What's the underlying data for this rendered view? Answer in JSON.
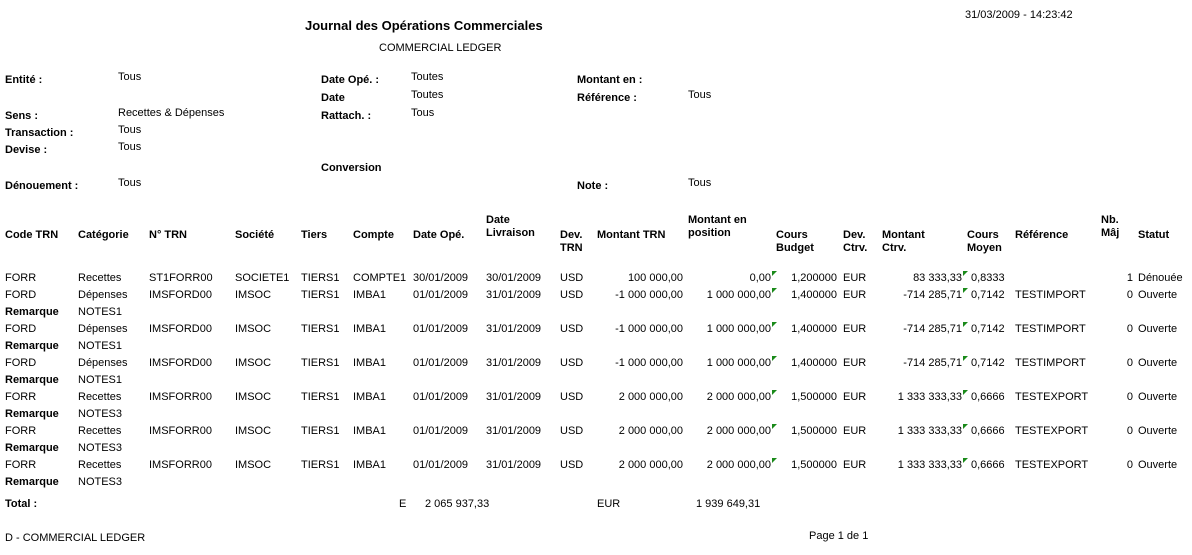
{
  "header": {
    "title": "Journal des Opérations Commerciales",
    "subtitle": "COMMERCIAL LEDGER",
    "datetime": "31/03/2009 - 14:23:42"
  },
  "filters": [
    {
      "label": "Entité :",
      "value": "Tous"
    },
    {
      "label": "Date Opé. :",
      "value": "Toutes"
    },
    {
      "label": "Montant en :"
    },
    {
      "label": "Date\nRattach. :",
      "value": "Toutes"
    },
    {
      "label": "Référence :",
      "value": "Tous"
    },
    {
      "label": "Sens :",
      "value": "Recettes & Dépenses"
    },
    {
      "value": "Tous"
    },
    {
      "label": "Transaction :",
      "value": "Tous"
    },
    {
      "label": "Devise :",
      "value": "Tous"
    },
    {
      "label": "Conversion"
    },
    {
      "label": "Dénouement :",
      "value": "Tous"
    },
    {
      "label": "Note :",
      "value": "Tous"
    }
  ],
  "table": {
    "columns": [
      "Code TRN",
      "Catégorie",
      "N° TRN",
      "Société",
      "Tiers",
      "Compte",
      "Date Opé.",
      "Date\nLivraison",
      "Dev.\nTRN",
      "Montant TRN",
      "Montant en\nposition",
      "Cours\nBudget",
      "Dev.\nCtrv.",
      "Montant\nCtrv.",
      "Cours\nMoyen",
      "Référence",
      "Nb.\nMâj",
      "Statut"
    ],
    "rows": [
      {
        "cells": [
          "FORR",
          "Recettes",
          "ST1FORR00",
          "SOCIETE1",
          "TIERS1",
          "COMPTE1",
          "30/01/2009",
          "30/01/2009",
          "USD",
          "100 000,00",
          "0,00",
          "1,200000",
          "EUR",
          "83 333,33",
          "0,8333",
          null,
          "1",
          "Dénouée"
        ]
      },
      {
        "cells": [
          "FORD",
          "Dépenses",
          "IMSFORD00",
          "IMSOC",
          "TIERS1",
          "IMBA1",
          "01/01/2009",
          "31/01/2009",
          "USD",
          "-1 000 000,00",
          "1 000 000,00",
          "1,400000",
          "EUR",
          "-714 285,71",
          "0,7142",
          "TESTIMPORT",
          "0",
          "Ouverte"
        ],
        "remark": {
          "label": "Remarque",
          "text": "NOTES1"
        }
      },
      {
        "cells": [
          "FORD",
          "Dépenses",
          "IMSFORD00",
          "IMSOC",
          "TIERS1",
          "IMBA1",
          "01/01/2009",
          "31/01/2009",
          "USD",
          "-1 000 000,00",
          "1 000 000,00",
          "1,400000",
          "EUR",
          "-714 285,71",
          "0,7142",
          "TESTIMPORT",
          "0",
          "Ouverte"
        ],
        "remark": {
          "label": "Remarque",
          "text": "NOTES1"
        }
      },
      {
        "cells": [
          "FORD",
          "Dépenses",
          "IMSFORD00",
          "IMSOC",
          "TIERS1",
          "IMBA1",
          "01/01/2009",
          "31/01/2009",
          "USD",
          "-1 000 000,00",
          "1 000 000,00",
          "1,400000",
          "EUR",
          "-714 285,71",
          "0,7142",
          "TESTIMPORT",
          "0",
          "Ouverte"
        ],
        "remark": {
          "label": "Remarque",
          "text": "NOTES1"
        }
      },
      {
        "cells": [
          "FORR",
          "Recettes",
          "IMSFORR00",
          "IMSOC",
          "TIERS1",
          "IMBA1",
          "01/01/2009",
          "31/01/2009",
          "USD",
          "2 000 000,00",
          "2 000 000,00",
          "1,500000",
          "EUR",
          "1 333 333,33",
          "0,6666",
          "TESTEXPORT",
          "0",
          "Ouverte"
        ],
        "remark": {
          "label": "Remarque",
          "text": "NOTES3"
        }
      },
      {
        "cells": [
          "FORR",
          "Recettes",
          "IMSFORR00",
          "IMSOC",
          "TIERS1",
          "IMBA1",
          "01/01/2009",
          "31/01/2009",
          "USD",
          "2 000 000,00",
          "2 000 000,00",
          "1,500000",
          "EUR",
          "1 333 333,33",
          "0,6666",
          "TESTEXPORT",
          "0",
          "Ouverte"
        ],
        "remark": {
          "label": "Remarque",
          "text": "NOTES3"
        }
      },
      {
        "cells": [
          "FORR",
          "Recettes",
          "IMSFORR00",
          "IMSOC",
          "TIERS1",
          "IMBA1",
          "01/01/2009",
          "31/01/2009",
          "USD",
          "2 000 000,00",
          "2 000 000,00",
          "1,500000",
          "EUR",
          "1 333 333,33",
          "0,6666",
          "TESTEXPORT",
          "0",
          "Ouverte"
        ],
        "remark": {
          "label": "Remarque",
          "text": "NOTES3"
        }
      }
    ],
    "total": {
      "label": "Total :",
      "currency_code": "E",
      "amount": "2 065 937,33",
      "currency": "EUR",
      "amount_position": "1 939 649,31"
    }
  },
  "footer": {
    "report": "D - COMMERCIAL LEDGER",
    "page": "Page 1 de 1"
  }
}
